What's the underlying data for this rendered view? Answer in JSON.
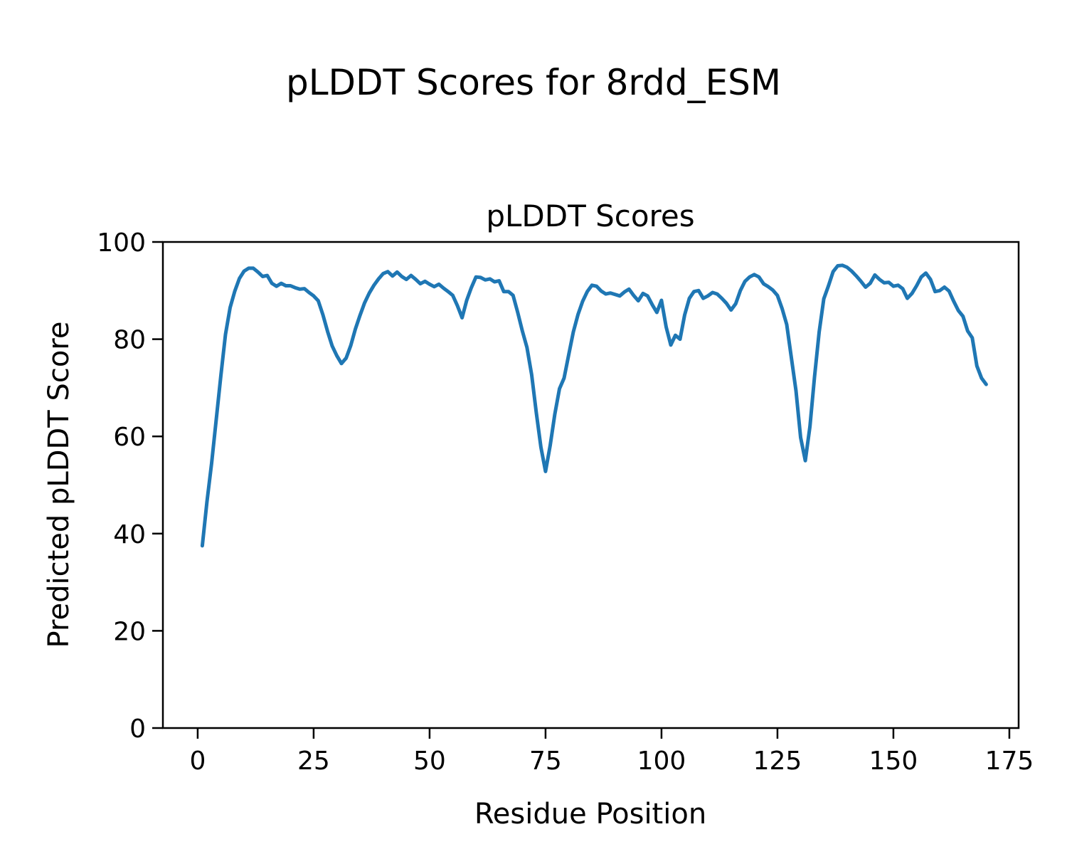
{
  "figure": {
    "suptitle": "pLDDT Scores for 8rdd_ESM",
    "background_color": "#ffffff"
  },
  "chart_data": {
    "type": "line",
    "title": "pLDDT Scores",
    "xlabel": "Residue Position",
    "ylabel": "Predicted pLDDT Score",
    "xlim": [
      -7.5,
      177.0
    ],
    "ylim": [
      0,
      100
    ],
    "xticks": [
      0,
      25,
      50,
      75,
      100,
      125,
      150,
      175
    ],
    "yticks": [
      0,
      20,
      40,
      60,
      80,
      100
    ],
    "grid": false,
    "legend": "none",
    "line_color": "#1f77b4",
    "axis_color": "#000000",
    "series": [
      {
        "name": "pLDDT",
        "x_start": 1,
        "x_step": 1,
        "values": [
          37.5,
          46.5,
          54.5,
          63.5,
          72.5,
          81.0,
          86.5,
          89.9,
          92.5,
          94.0,
          94.6,
          94.6,
          93.8,
          92.9,
          93.1,
          91.5,
          90.9,
          91.5,
          91.0,
          91.0,
          90.6,
          90.3,
          90.4,
          89.6,
          88.9,
          87.9,
          85.0,
          81.6,
          78.6,
          76.6,
          75.0,
          76.1,
          78.7,
          82.1,
          84.9,
          87.5,
          89.5,
          91.1,
          92.4,
          93.5,
          93.9,
          93.0,
          93.8,
          92.9,
          92.3,
          93.1,
          92.3,
          91.4,
          91.9,
          91.3,
          90.8,
          91.3,
          90.5,
          89.8,
          89.0,
          86.9,
          84.4,
          88.0,
          90.6,
          92.8,
          92.7,
          92.2,
          92.4,
          91.8,
          92.0,
          89.8,
          89.8,
          89.0,
          85.5,
          81.7,
          78.3,
          72.7,
          64.9,
          57.8,
          52.8,
          58.1,
          64.6,
          69.8,
          72.0,
          76.8,
          81.5,
          85.1,
          87.8,
          89.8,
          91.1,
          90.9,
          89.9,
          89.3,
          89.5,
          89.2,
          88.9,
          89.7,
          90.3,
          89.0,
          87.9,
          89.4,
          88.9,
          87.1,
          85.5,
          88.0,
          82.5,
          78.8,
          80.8,
          80.0,
          85.0,
          88.4,
          89.8,
          90.0,
          88.4,
          88.9,
          89.6,
          89.3,
          88.4,
          87.4,
          86.0,
          87.3,
          90.0,
          91.9,
          92.8,
          93.3,
          92.8,
          91.4,
          90.8,
          90.1,
          89.0,
          86.3,
          83.0,
          76.2,
          69.4,
          59.8,
          55.0,
          62.0,
          72.3,
          81.5,
          88.3,
          91.0,
          93.9,
          95.1,
          95.2,
          94.8,
          94.0,
          93.0,
          91.9,
          90.7,
          91.5,
          93.2,
          92.3,
          91.6,
          91.7,
          90.9,
          91.1,
          90.4,
          88.4,
          89.4,
          91.0,
          92.8,
          93.6,
          92.3,
          89.8,
          90.0,
          90.7,
          89.9,
          87.8,
          85.9,
          84.7,
          81.7,
          80.3,
          74.5,
          72.0,
          70.7
        ]
      }
    ]
  }
}
